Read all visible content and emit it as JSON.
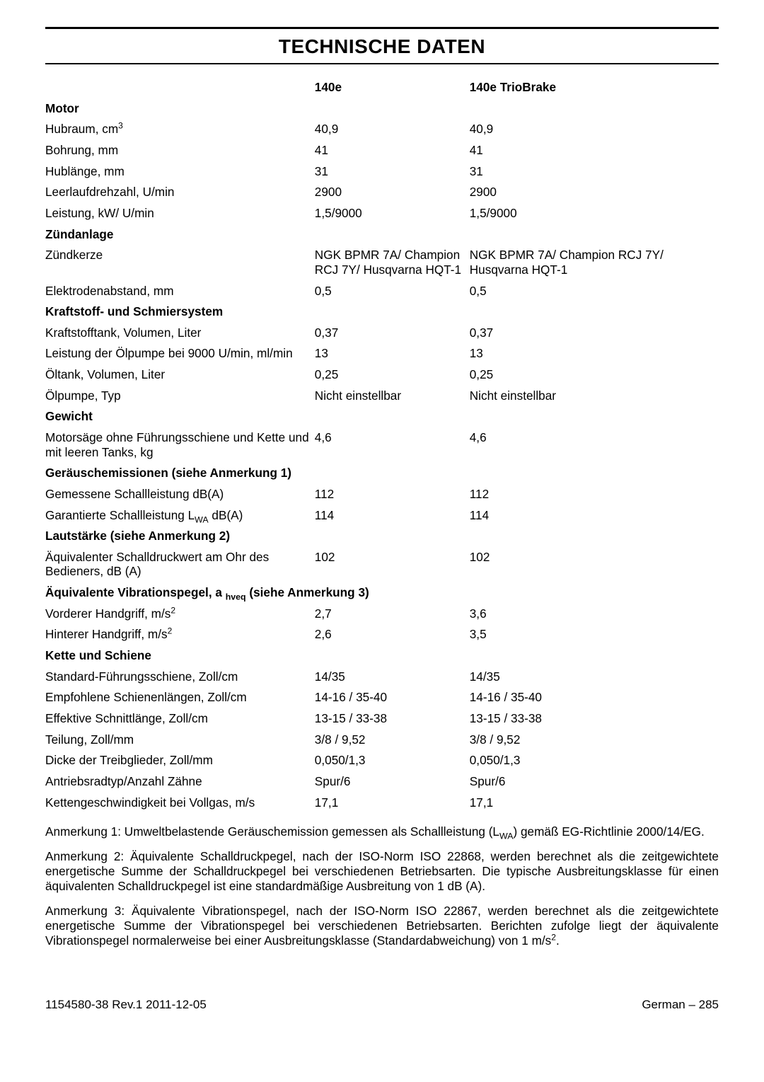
{
  "title": "TECHNISCHE DATEN",
  "col1_header": "140e",
  "col2_header": "140e TrioBrake",
  "sections": [
    {
      "type": "section",
      "label": "Motor"
    },
    {
      "type": "row_sup",
      "label_pre": "Hubraum, cm",
      "label_sup": "3",
      "v1": "40,9",
      "v2": "40,9"
    },
    {
      "type": "row",
      "label": "Bohrung, mm",
      "v1": "41",
      "v2": "41"
    },
    {
      "type": "row",
      "label": "Hublänge, mm",
      "v1": "31",
      "v2": "31"
    },
    {
      "type": "row",
      "label": "Leerlaufdrehzahl, U/min",
      "v1": "2900",
      "v2": "2900"
    },
    {
      "type": "row",
      "label": "Leistung, kW/ U/min",
      "v1": "1,5/9000",
      "v2": "1,5/9000"
    },
    {
      "type": "section",
      "label": "Zündanlage"
    },
    {
      "type": "row",
      "label": "Zündkerze",
      "v1": "NGK BPMR 7A/ Champion RCJ 7Y/ Husqvarna HQT-1",
      "v2": "NGK BPMR 7A/ Champion RCJ 7Y/ Husqvarna HQT-1"
    },
    {
      "type": "row",
      "label": "Elektrodenabstand, mm",
      "v1": "0,5",
      "v2": "0,5"
    },
    {
      "type": "section",
      "label": "Kraftstoff- und Schmiersystem"
    },
    {
      "type": "row",
      "label": "Kraftstofftank, Volumen, Liter",
      "v1": "0,37",
      "v2": "0,37"
    },
    {
      "type": "row",
      "label": "Leistung der Ölpumpe bei 9000 U/min, ml/min",
      "v1": "13",
      "v2": "13"
    },
    {
      "type": "row",
      "label": "Öltank, Volumen, Liter",
      "v1": "0,25",
      "v2": "0,25"
    },
    {
      "type": "row",
      "label": "Ölpumpe, Typ",
      "v1": "Nicht einstellbar",
      "v2": "Nicht einstellbar"
    },
    {
      "type": "section",
      "label": "Gewicht"
    },
    {
      "type": "row",
      "label": "Motorsäge ohne Führungsschiene und Kette und mit leeren Tanks, kg",
      "v1": "4,6",
      "v2": "4,6"
    },
    {
      "type": "section",
      "label": "Geräuschemissionen (siehe Anmerkung 1)"
    },
    {
      "type": "row",
      "label": "Gemessene Schallleistung dB(A)",
      "v1": "112",
      "v2": "112"
    },
    {
      "type": "row_sub",
      "label_pre": "Garantierte Schallleistung L",
      "label_sub": "WA",
      "label_post": " dB(A)",
      "v1": "114",
      "v2": "114"
    },
    {
      "type": "section",
      "label": "Lautstärke (siehe Anmerkung 2)"
    },
    {
      "type": "row",
      "label": "Äquivalenter Schalldruckwert am Ohr des Bedieners, dB (A)",
      "v1": "102",
      "v2": "102"
    },
    {
      "type": "section_sub",
      "label_pre": "Äquivalente Vibrationspegel, a ",
      "label_sub": "hveq",
      "label_post": " (siehe Anmerkung 3)"
    },
    {
      "type": "row_sup",
      "label_pre": "Vorderer Handgriff, m/s",
      "label_sup": "2",
      "v1": "2,7",
      "v2": "3,6"
    },
    {
      "type": "row_sup",
      "label_pre": "Hinterer Handgriff, m/s",
      "label_sup": "2",
      "v1": "2,6",
      "v2": "3,5"
    },
    {
      "type": "section",
      "label": "Kette und Schiene"
    },
    {
      "type": "row",
      "label": "Standard-Führungsschiene, Zoll/cm",
      "v1": "14/35",
      "v2": "14/35"
    },
    {
      "type": "row",
      "label": "Empfohlene Schienenlängen, Zoll/cm",
      "v1": "14-16 / 35-40",
      "v2": "14-16 / 35-40"
    },
    {
      "type": "row",
      "label": "Effektive Schnittlänge, Zoll/cm",
      "v1": "13-15 / 33-38",
      "v2": "13-15 / 33-38"
    },
    {
      "type": "row",
      "label": "Teilung, Zoll/mm",
      "v1": "3/8 / 9,52",
      "v2": "3/8 / 9,52"
    },
    {
      "type": "row",
      "label": "Dicke der Treibglieder, Zoll/mm",
      "v1": "0,050/1,3",
      "v2": "0,050/1,3"
    },
    {
      "type": "row",
      "label": "Antriebsradtyp/Anzahl Zähne",
      "v1": "Spur/6",
      "v2": "Spur/6"
    },
    {
      "type": "row",
      "label": "Kettengeschwindigkeit bei Vollgas, m/s",
      "v1": "17,1",
      "v2": "17,1"
    }
  ],
  "note1_pre": "Anmerkung 1: Umweltbelastende Geräuschemission gemessen als Schallleistung (L",
  "note1_sub": "WA",
  "note1_post": ") gemäß EG-Richtlinie 2000/14/EG.",
  "note2": "Anmerkung 2: Äquivalente Schalldruckpegel, nach der ISO-Norm ISO 22868, werden berechnet als die zeitgewichtete energetische Summe der Schalldruckpegel bei verschiedenen Betriebsarten. Die typische Ausbreitungsklasse für einen äquivalenten Schalldruckpegel ist eine standardmäßige Ausbreitung von 1 dB (A).",
  "note3_pre": "Anmerkung 3: Äquivalente Vibrationspegel, nach der ISO-Norm ISO 22867, werden berechnet als die zeitgewichtete energetische Summe der Vibrationspegel bei verschiedenen Betriebsarten. Berichten zufolge liegt der äquivalente Vibrationspegel normalerweise bei einer Ausbreitungsklasse (Standardabweichung) von 1 m/s",
  "note3_sup": "2",
  "note3_post": ".",
  "footer_left": "1154580-38 Rev.1 2011-12-05",
  "footer_right": "German – 285"
}
